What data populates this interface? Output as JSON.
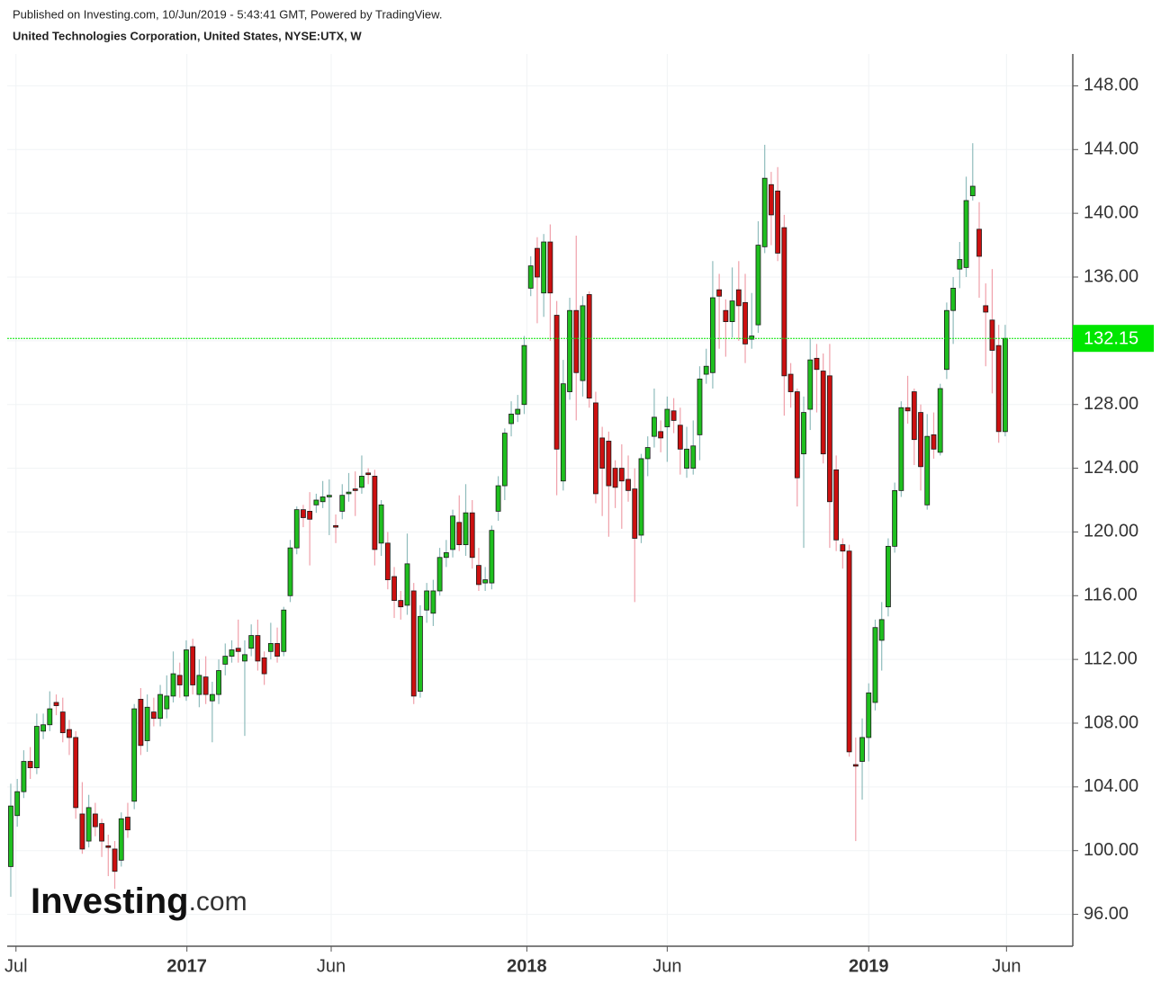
{
  "header": {
    "published": "Published on Investing.com, 10/Jun/2019 - 5:43:41 GMT, Powered by TradingView.",
    "symbol": "United Technologies Corporation, United States, NYSE:UTX, W"
  },
  "watermark": {
    "brand": "Investing",
    "suffix": ".com"
  },
  "chart_data": {
    "type": "candlestick",
    "up_color": "#1fbf1f",
    "down_color": "#cc1010",
    "up_wick_color": "#8fbcbc",
    "down_wick_color": "#f0a0aa",
    "grid": true,
    "last_price": 132.15,
    "last_price_color": "#00e600",
    "xlim": [
      -0.55,
      163.4
    ],
    "ylim": [
      94,
      150
    ],
    "xticks": [
      {
        "value": 0.8,
        "label": "Jul"
      },
      {
        "value": 27.1,
        "label": "2017"
      },
      {
        "value": 49.3,
        "label": "Jun"
      },
      {
        "value": 79.4,
        "label": "2018"
      },
      {
        "value": 101,
        "label": "Jun"
      },
      {
        "value": 132,
        "label": "2019"
      },
      {
        "value": 153.2,
        "label": "Jun"
      }
    ],
    "yticks": [
      {
        "value": 96,
        "label": "96.00"
      },
      {
        "value": 100,
        "label": "100.00"
      },
      {
        "value": 104,
        "label": "104.00"
      },
      {
        "value": 108,
        "label": "108.00"
      },
      {
        "value": 112,
        "label": "112.00"
      },
      {
        "value": 116,
        "label": "116.00"
      },
      {
        "value": 120,
        "label": "120.00"
      },
      {
        "value": 124,
        "label": "124.00"
      },
      {
        "value": 128,
        "label": "128.00"
      },
      {
        "value": 132,
        "label": "132.00"
      },
      {
        "value": 136,
        "label": "136.00"
      },
      {
        "value": 140,
        "label": "140.00"
      },
      {
        "value": 144,
        "label": "144.00"
      },
      {
        "value": 148,
        "label": "148.00"
      }
    ],
    "open": [
      99.0,
      102.2,
      103.7,
      105.6,
      105.2,
      107.5,
      107.9,
      109.3,
      108.7,
      107.6,
      107.1,
      102.3,
      100.6,
      102.3,
      101.7,
      100.3,
      100.1,
      99.4,
      102.1,
      103.1,
      109.5,
      106.9,
      108.7,
      108.3,
      108.9,
      109.7,
      111.0,
      109.7,
      112.8,
      109.8,
      110.9,
      109.4,
      109.8,
      111.7,
      112.2,
      112.7,
      111.9,
      112.7,
      113.5,
      112.1,
      112.5,
      113.0,
      112.5,
      116.0,
      119.0,
      121.4,
      121.3,
      121.7,
      121.9,
      122.2,
      120.4,
      121.3,
      122.4,
      122.7,
      122.8,
      123.7,
      123.5,
      119.3,
      119.3,
      117.2,
      115.7,
      115.4,
      116.3,
      110.0,
      115.1,
      114.9,
      116.3,
      118.4,
      118.9,
      120.6,
      119.2,
      121.2,
      117.9,
      116.8,
      116.8,
      121.3,
      122.9,
      126.8,
      127.4,
      128.0,
      135.3,
      137.8,
      135.0,
      138.2,
      133.6,
      123.2,
      128.8,
      133.9,
      129.5,
      134.9,
      128.1,
      125.9,
      125.7,
      124.0,
      124.0,
      123.3,
      122.7,
      119.8,
      124.6,
      126.0,
      126.3,
      126.6,
      127.6,
      126.7,
      124.0,
      124.0,
      126.1,
      129.9,
      130.0,
      135.2,
      133.9,
      133.2,
      135.2,
      134.4,
      132.1,
      133.0,
      137.9,
      141.8,
      141.4,
      139.1,
      129.9,
      128.8,
      124.9,
      127.7,
      130.9,
      130.1,
      129.8,
      123.9,
      119.2,
      118.8,
      105.4,
      105.6,
      107.1,
      109.3,
      113.2,
      115.3,
      119.1,
      122.6,
      127.8,
      128.8,
      127.5,
      121.7,
      126.1,
      125.0,
      130.2,
      133.9,
      136.5,
      136.6,
      141.1,
      139.0,
      134.2,
      133.3,
      131.7,
      126.3
    ],
    "high": [
      104.2,
      104.5,
      106.3,
      106.5,
      108.6,
      108.6,
      110.0,
      109.8,
      109.6,
      108.2,
      107.5,
      104.3,
      103.5,
      103.0,
      102.0,
      101.0,
      100.6,
      102.4,
      103.0,
      109.2,
      110.2,
      109.8,
      109.6,
      110.4,
      111.0,
      112.5,
      111.8,
      113.2,
      113.3,
      112.0,
      112.2,
      110.6,
      112.0,
      113.0,
      113.2,
      114.5,
      113.2,
      114.2,
      114.5,
      112.5,
      114.3,
      114.0,
      115.3,
      119.5,
      121.6,
      121.7,
      122.5,
      122.4,
      123.2,
      123.3,
      121.1,
      123.0,
      123.7,
      123.8,
      124.8,
      124.0,
      123.9,
      122.0,
      120.0,
      117.8,
      116.3,
      119.9,
      116.8,
      115.4,
      116.8,
      117.0,
      119.0,
      119.5,
      121.4,
      122.3,
      123.0,
      122.0,
      119.0,
      117.8,
      120.4,
      123.5,
      126.5,
      128.2,
      128.6,
      132.3,
      137.3,
      138.5,
      138.7,
      139.3,
      134.5,
      130.8,
      134.7,
      138.6,
      134.8,
      135.1,
      128.8,
      126.6,
      126.3,
      124.5,
      125.5,
      124.8,
      124.0,
      124.9,
      126.0,
      129.0,
      127.0,
      128.5,
      128.4,
      127.8,
      126.6,
      127.0,
      130.4,
      131.5,
      137.0,
      136.2,
      134.6,
      136.6,
      137.0,
      136.2,
      135.0,
      139.5,
      144.3,
      142.6,
      142.9,
      139.9,
      130.6,
      129.0,
      128.5,
      132.1,
      131.8,
      131.2,
      131.8,
      124.8,
      119.6,
      119.2,
      107.1,
      108.3,
      110.5,
      114.5,
      115.6,
      119.6,
      123.1,
      128.2,
      129.8,
      129.0,
      128.0,
      127.4,
      127.5,
      129.3,
      134.4,
      136.0,
      138.2,
      142.3,
      144.4,
      140.7,
      135.6,
      136.5,
      133.0,
      133.0
    ],
    "low": [
      97.1,
      101.5,
      103.3,
      104.5,
      104.8,
      107.0,
      107.5,
      108.5,
      106.8,
      106.0,
      102.0,
      99.8,
      100.2,
      100.9,
      99.6,
      98.4,
      97.6,
      99.0,
      100.8,
      102.6,
      106.0,
      106.2,
      107.8,
      107.8,
      108.3,
      109.3,
      109.6,
      109.4,
      109.8,
      109.0,
      109.2,
      106.8,
      109.2,
      111.0,
      111.8,
      111.8,
      107.2,
      112.2,
      111.3,
      110.4,
      112.0,
      111.8,
      112.2,
      115.6,
      118.6,
      120.3,
      117.9,
      121.2,
      121.5,
      119.8,
      119.3,
      120.8,
      121.9,
      121.0,
      122.4,
      123.0,
      117.9,
      118.5,
      116.4,
      114.6,
      114.5,
      114.8,
      109.2,
      109.6,
      114.3,
      114.1,
      116.0,
      117.8,
      118.4,
      118.8,
      118.5,
      117.7,
      116.3,
      116.3,
      116.4,
      120.7,
      122.0,
      126.0,
      126.9,
      127.4,
      134.8,
      133.1,
      133.5,
      132.0,
      122.3,
      122.6,
      128.3,
      127.0,
      128.5,
      127.8,
      121.8,
      121.0,
      119.7,
      121.5,
      120.2,
      121.9,
      115.6,
      119.3,
      123.5,
      125.3,
      125.0,
      124.4,
      126.2,
      123.6,
      123.4,
      123.6,
      124.5,
      129.3,
      129.0,
      131.5,
      131.0,
      132.2,
      132.0,
      130.6,
      131.5,
      132.5,
      137.5,
      138.0,
      137.0,
      127.3,
      127.8,
      121.6,
      119.0,
      126.4,
      127.5,
      124.3,
      119.0,
      118.8,
      117.7,
      105.9,
      100.6,
      103.2,
      105.6,
      108.8,
      111.3,
      114.7,
      118.7,
      122.2,
      126.8,
      124.2,
      122.6,
      121.4,
      124.6,
      124.8,
      129.6,
      131.8,
      135.3,
      136.0,
      140.8,
      134.7,
      130.4,
      128.7,
      125.6,
      126.0
    ],
    "close": [
      102.8,
      103.7,
      105.6,
      105.2,
      107.8,
      107.9,
      108.9,
      109.1,
      107.4,
      107.1,
      102.7,
      100.1,
      102.7,
      101.5,
      100.6,
      100.2,
      98.7,
      102.0,
      101.3,
      108.9,
      106.6,
      109.0,
      108.3,
      109.8,
      109.7,
      111.1,
      110.4,
      112.6,
      110.4,
      111.0,
      109.8,
      109.8,
      111.3,
      112.2,
      112.6,
      112.5,
      112.3,
      113.5,
      111.9,
      111.1,
      113.0,
      112.2,
      115.1,
      119.0,
      121.4,
      120.9,
      120.8,
      122.0,
      122.2,
      122.3,
      120.3,
      122.3,
      122.5,
      122.6,
      123.5,
      123.6,
      118.9,
      121.7,
      117.0,
      115.7,
      115.3,
      118.0,
      109.7,
      114.7,
      116.3,
      116.3,
      118.4,
      118.7,
      121.0,
      119.2,
      121.2,
      118.4,
      116.7,
      117.0,
      120.1,
      122.9,
      126.2,
      127.4,
      127.7,
      131.7,
      136.7,
      136.0,
      138.2,
      135.0,
      125.2,
      129.3,
      133.9,
      130.0,
      134.2,
      128.4,
      122.4,
      124.0,
      122.9,
      122.8,
      123.2,
      122.6,
      119.6,
      124.6,
      125.3,
      127.2,
      125.9,
      127.7,
      127.0,
      125.2,
      125.2,
      125.4,
      129.6,
      130.4,
      134.7,
      134.8,
      133.2,
      134.5,
      134.2,
      131.8,
      132.3,
      138.0,
      142.2,
      139.9,
      137.5,
      129.8,
      128.8,
      123.4,
      127.5,
      130.8,
      130.2,
      124.9,
      121.9,
      119.5,
      118.8,
      106.2,
      105.3,
      107.1,
      109.9,
      114.0,
      114.5,
      119.1,
      122.6,
      127.8,
      127.6,
      125.8,
      124.1,
      126.0,
      125.2,
      129.0,
      133.9,
      135.3,
      137.1,
      140.8,
      141.7,
      137.3,
      133.8,
      131.4,
      126.3,
      132.15
    ]
  }
}
